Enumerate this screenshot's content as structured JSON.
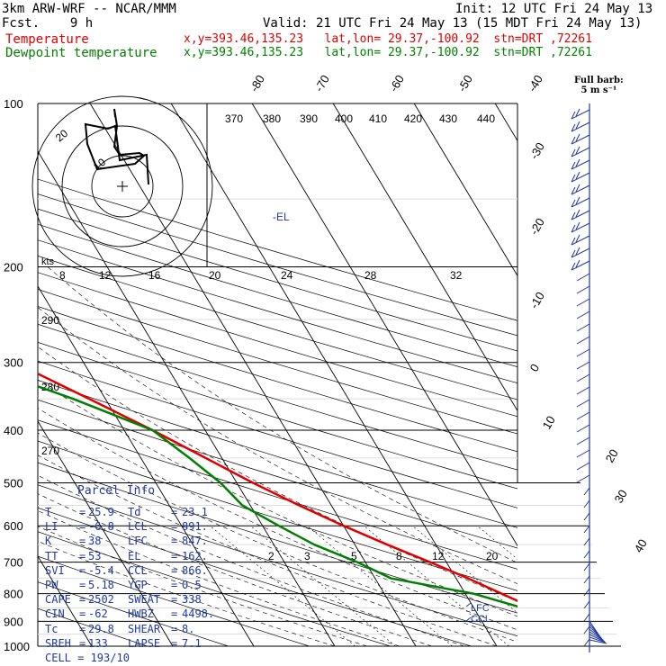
{
  "header": {
    "line1_left": "3km ARW-WRF -- NCAR/MMM",
    "line1_right": "Init: 12 UTC Fri 24 May 13",
    "line2_left": "Fcst.    9 h",
    "line2_right": "Valid: 21 UTC Fri 24 May 13 (15 MDT Fri 24 May 13)",
    "temp_label": "Temperature",
    "temp_info": "x,y=393.46,135.23   lat,lon= 29.37,-100.92  stn=DRT ,72261",
    "dew_label": "Dewpoint temperature",
    "dew_info": "x,y=393.46,135.23   lat,lon= 29.37,-100.92  stn=DRT ,72261"
  },
  "colors": {
    "temperature": "#e00000",
    "dewpoint": "#008000",
    "parcel_text": "#1f3aa0",
    "barbs": "#1f3aa0"
  },
  "barb_legend": {
    "line1": "Full barb:",
    "line2": "5 m s⁻¹"
  },
  "hodograph": {
    "label": "kts",
    "ticks": [
      "8",
      "12",
      "16",
      "20",
      "24",
      "28",
      "32"
    ],
    "ring_labels": [
      "20",
      "10"
    ]
  },
  "el_label": "-EL",
  "lfc_label": "LFC",
  "ccl_label": "CCL",
  "pressure_levels": [
    "100",
    "200",
    "300",
    "400",
    "500",
    "600",
    "700",
    "800",
    "900",
    "1000"
  ],
  "isotherm_labels": [
    "-80",
    "-70",
    "-60",
    "-50",
    "-40",
    "-30",
    "-20",
    "-10",
    "0",
    "10",
    "20",
    "30",
    "40"
  ],
  "theta_labels": [
    "370",
    "380",
    "390",
    "400",
    "410",
    "420",
    "430",
    "440"
  ],
  "theta_side_labels": [
    "290",
    "280",
    "270"
  ],
  "mixing_ratio_labels": [
    "2",
    "3",
    "5",
    "8",
    "12",
    "20"
  ],
  "parcel_info": {
    "title": "Parcel Info",
    "rows": [
      {
        "k1": "T",
        "v1": "25.9",
        "k2": "Td",
        "v2": "23.1"
      },
      {
        "k1": "LI",
        "v1": "-6.8",
        "k2": "LCL",
        "v2": "891."
      },
      {
        "k1": "K",
        "v1": "38",
        "k2": "LFC",
        "v2": "847."
      },
      {
        "k1": "TT",
        "v1": "53",
        "k2": "EL",
        "v2": "162."
      },
      {
        "k1": "SVI",
        "v1": "-5.4",
        "k2": "CCL",
        "v2": "866."
      },
      {
        "k1": "PW",
        "v1": "5.18",
        "k2": "YGP",
        "v2": "0.5"
      },
      {
        "k1": "CAPE",
        "v1": "2502",
        "k2": "SWEAT",
        "v2": "338"
      },
      {
        "k1": "CIN",
        "v1": "-62",
        "k2": "HWBZ",
        "v2": "4498."
      },
      {
        "k1": "Tc",
        "v1": "29.8",
        "k2": "SHEAR",
        "v2": "8."
      },
      {
        "k1": "SREH",
        "v1": "133",
        "k2": "LAPSE",
        "v2": "7.1"
      }
    ],
    "cell": "CELL = 193/10"
  },
  "chart_data": {
    "type": "line",
    "title": "",
    "xlabel": "",
    "ylabel": "",
    "y_axis": "pressure (hPa), log scale",
    "ylim": [
      1000,
      100
    ],
    "series": [
      {
        "name": "Temperature",
        "points": [
          [
            1000,
            25.9
          ],
          [
            950,
            23
          ],
          [
            900,
            20
          ],
          [
            850,
            17.3
          ],
          [
            800,
            14.5
          ],
          [
            750,
            11.5
          ],
          [
            700,
            8
          ],
          [
            650,
            4
          ],
          [
            600,
            0
          ],
          [
            550,
            -4
          ],
          [
            500,
            -8
          ],
          [
            450,
            -12
          ],
          [
            400,
            -16.5
          ],
          [
            350,
            -22
          ],
          [
            300,
            -28.5
          ],
          [
            250,
            -37
          ],
          [
            230,
            -42
          ],
          [
            200,
            -48
          ],
          [
            185,
            -56
          ],
          [
            170,
            -63
          ],
          [
            150,
            -67
          ],
          [
            140,
            -67
          ],
          [
            130,
            -66
          ],
          [
            120,
            -66
          ],
          [
            110,
            -68
          ],
          [
            100,
            -72
          ]
        ]
      },
      {
        "name": "Dewpoint temperature",
        "points": [
          [
            1000,
            23.1
          ],
          [
            950,
            21
          ],
          [
            900,
            19
          ],
          [
            850,
            16
          ],
          [
            800,
            11
          ],
          [
            750,
            2
          ],
          [
            700,
            -1
          ],
          [
            650,
            -5
          ],
          [
            600,
            -8
          ],
          [
            550,
            -11
          ],
          [
            500,
            -12
          ],
          [
            450,
            -14
          ],
          [
            400,
            -16.5
          ],
          [
            350,
            -24
          ],
          [
            300,
            -34
          ],
          [
            250,
            -44
          ],
          [
            220,
            -53
          ],
          [
            200,
            -60
          ],
          [
            190,
            -67
          ],
          [
            180,
            -77
          ],
          [
            170,
            -87
          ],
          [
            150,
            -88
          ],
          [
            130,
            -86
          ],
          [
            120,
            -83
          ],
          [
            110,
            -80
          ],
          [
            100,
            -79
          ]
        ]
      }
    ]
  }
}
